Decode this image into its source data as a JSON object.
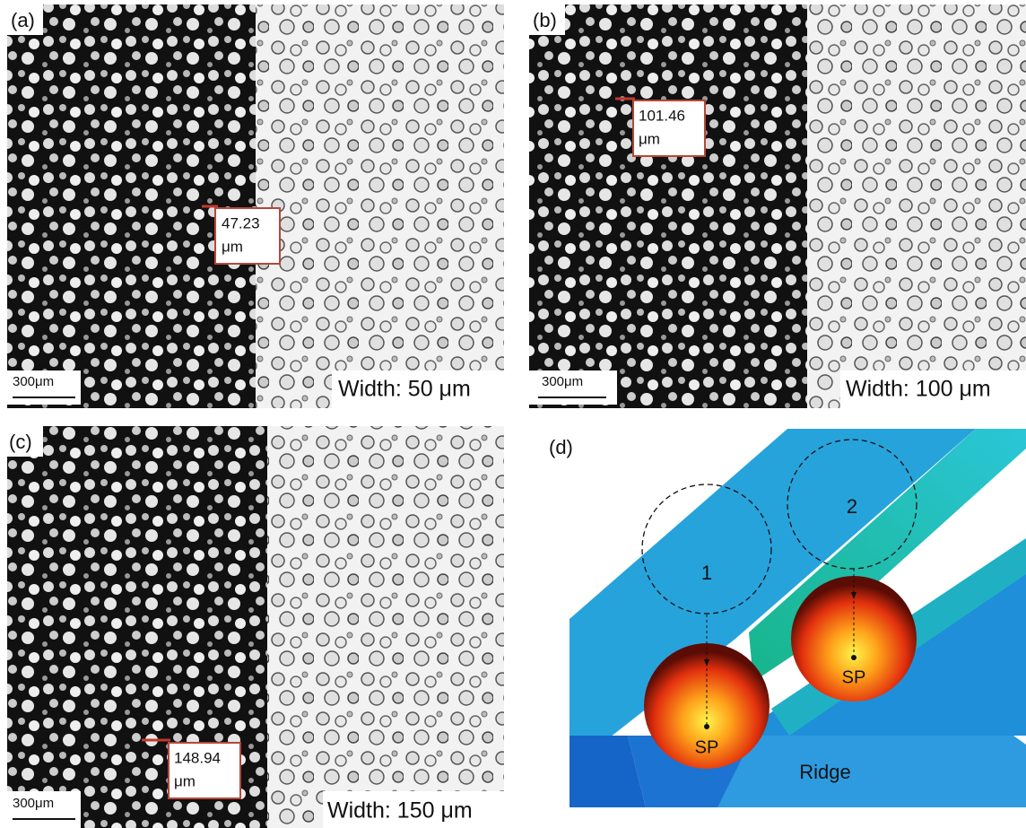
{
  "panels": [
    {
      "label": "(a)",
      "measurement": [
        "47.23",
        "μm"
      ],
      "scale_bar": "300μm",
      "width": "Width: 50 μm"
    },
    {
      "label": "(b)",
      "measurement": [
        "101.46",
        "μm"
      ],
      "scale_bar": "300μm",
      "width": "Width: 100 μm"
    },
    {
      "label": "(c)",
      "measurement": [
        "148.94",
        "μm"
      ],
      "scale_bar": "300μm",
      "width": "Width: 150 μm"
    }
  ],
  "diagram": {
    "label": "(d)",
    "circles": [
      "1",
      "2"
    ],
    "points": [
      "SP",
      "SP"
    ],
    "ridge": "Ridge"
  }
}
